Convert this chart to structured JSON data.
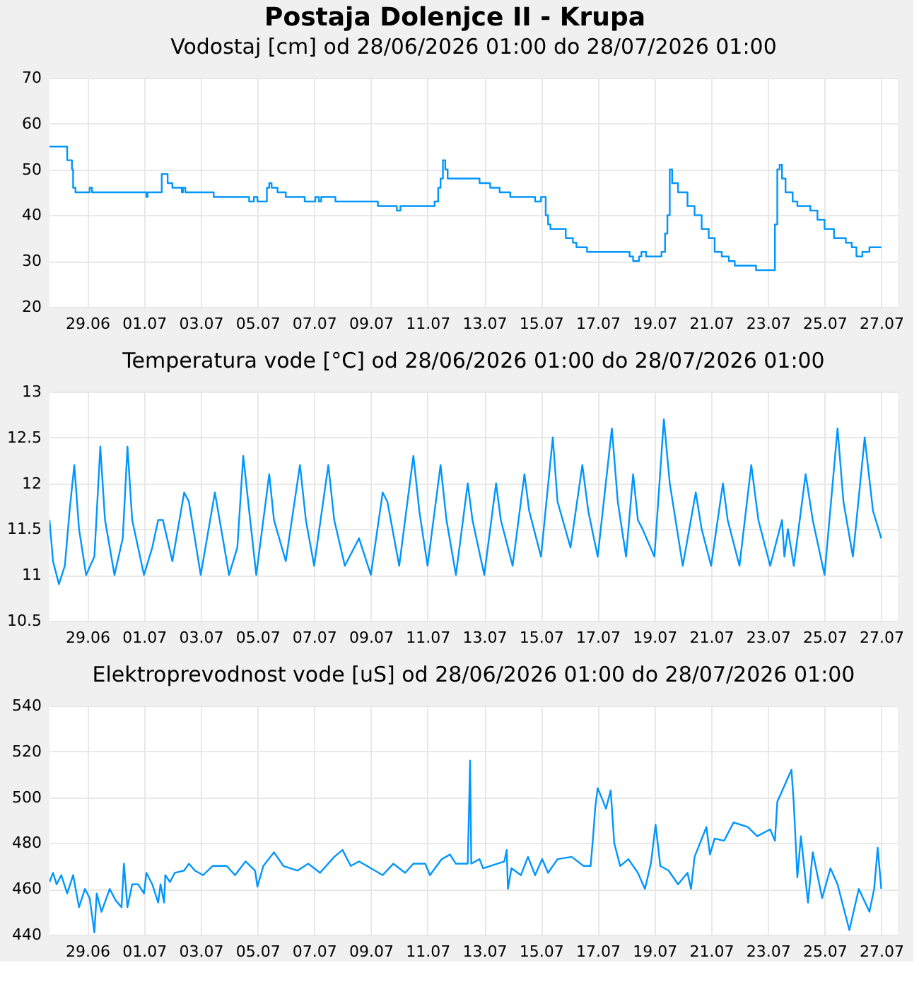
{
  "chart_data": [
    {
      "type": "step",
      "title": "Postaja Dolenjce II - Krupa",
      "subtitle": "Vodostaj [cm] od 28/06/2026 01:00 do 28/07/2026 01:00",
      "x": [
        "2026-06-27T16:00",
        "2026-06-28T07:00",
        "2026-06-28T11:00",
        "2026-06-28T12:00",
        "2026-06-28T14:00",
        "2026-06-29T02:00",
        "2026-06-29T04:00",
        "2026-07-01T02:00",
        "2026-07-01T03:00",
        "2026-07-01T15:00",
        "2026-07-01T20:00",
        "2026-07-02T00:00",
        "2026-07-02T08:00",
        "2026-07-02T09:00",
        "2026-07-02T11:00",
        "2026-07-03T11:00",
        "2026-07-04T17:00",
        "2026-07-04T21:00",
        "2026-07-05T00:00",
        "2026-07-05T08:00",
        "2026-07-05T10:00",
        "2026-07-05T12:00",
        "2026-07-05T17:00",
        "2026-07-06T00:00",
        "2026-07-06T16:00",
        "2026-07-07T01:00",
        "2026-07-07T04:00",
        "2026-07-07T06:00",
        "2026-07-07T18:00",
        "2026-07-09T06:00",
        "2026-07-09T22:00",
        "2026-07-10T01:00",
        "2026-07-11T06:00",
        "2026-07-11T09:00",
        "2026-07-11T11:00",
        "2026-07-11T13:00",
        "2026-07-11T15:00",
        "2026-07-11T17:00",
        "2026-07-12T20:00",
        "2026-07-13T05:00",
        "2026-07-13T13:00",
        "2026-07-13T22:00",
        "2026-07-14T19:00",
        "2026-07-15T00:00",
        "2026-07-15T04:00",
        "2026-07-15T06:00",
        "2026-07-15T08:00",
        "2026-07-15T21:00",
        "2026-07-16T03:00",
        "2026-07-16T06:00",
        "2026-07-16T15:00",
        "2026-07-18T03:00",
        "2026-07-18T06:00",
        "2026-07-18T11:00",
        "2026-07-18T13:00",
        "2026-07-18T17:00",
        "2026-07-19T06:00",
        "2026-07-19T09:00",
        "2026-07-19T11:00",
        "2026-07-19T13:00",
        "2026-07-19T15:00",
        "2026-07-19T20:00",
        "2026-07-20T04:00",
        "2026-07-20T10:00",
        "2026-07-20T16:00",
        "2026-07-20T22:00",
        "2026-07-21T03:00",
        "2026-07-21T09:00",
        "2026-07-21T15:00",
        "2026-07-21T20:00",
        "2026-07-22T14:00",
        "2026-07-23T06:00",
        "2026-07-23T08:00",
        "2026-07-23T10:00",
        "2026-07-23T12:00",
        "2026-07-23T15:00",
        "2026-07-23T21:00",
        "2026-07-24T01:00",
        "2026-07-24T12:00",
        "2026-07-24T18:00",
        "2026-07-25T00:00",
        "2026-07-25T08:00",
        "2026-07-25T18:00",
        "2026-07-25T23:00",
        "2026-07-26T03:00",
        "2026-07-26T08:00",
        "2026-07-26T14:00",
        "2026-07-27T00:00"
      ],
      "series": [
        {
          "color": "#0096ff",
          "values": [
            55,
            52,
            50,
            46,
            45,
            46,
            45,
            44,
            45,
            49,
            47,
            46,
            45,
            46,
            45,
            44,
            43,
            44,
            43,
            46,
            47,
            46,
            45,
            44,
            43,
            44,
            43,
            44,
            43,
            42,
            41,
            42,
            43,
            46,
            48,
            52,
            50,
            48,
            47,
            46,
            45,
            44,
            43,
            44,
            40,
            38,
            37,
            35,
            34,
            33,
            32,
            31,
            30,
            31,
            32,
            31,
            32,
            36,
            40,
            50,
            47,
            45,
            42,
            40,
            37,
            35,
            32,
            31,
            30,
            29,
            28,
            38,
            50,
            51,
            48,
            45,
            43,
            42,
            41,
            39,
            37,
            35,
            34,
            33,
            31,
            32,
            33,
            33
          ]
        }
      ],
      "xlim": [
        "2026-06-27T16:00",
        "2026-07-27T14:00"
      ],
      "ylim": [
        20,
        70
      ],
      "yticks": [
        20,
        30,
        40,
        50,
        60,
        70
      ],
      "xticks": [
        {
          "value": "2026-06-29",
          "label": "29.06"
        },
        {
          "value": "2026-07-01",
          "label": "01.07"
        },
        {
          "value": "2026-07-03",
          "label": "03.07"
        },
        {
          "value": "2026-07-05",
          "label": "05.07"
        },
        {
          "value": "2026-07-07",
          "label": "07.07"
        },
        {
          "value": "2026-07-09",
          "label": "09.07"
        },
        {
          "value": "2026-07-11",
          "label": "11.07"
        },
        {
          "value": "2026-07-13",
          "label": "13.07"
        },
        {
          "value": "2026-07-15",
          "label": "15.07"
        },
        {
          "value": "2026-07-17",
          "label": "17.07"
        },
        {
          "value": "2026-07-19",
          "label": "19.07"
        },
        {
          "value": "2026-07-21",
          "label": "21.07"
        },
        {
          "value": "2026-07-23",
          "label": "23.07"
        },
        {
          "value": "2026-07-25",
          "label": "25.07"
        },
        {
          "value": "2026-07-27",
          "label": "27.07"
        }
      ],
      "grid": true,
      "line_style": "solid"
    },
    {
      "type": "line",
      "title": "Temperatura vode [°C] od 28/06/2026 01:00 do 28/07/2026 01:00",
      "x": [
        "2026-06-27T16:00",
        "2026-06-27T19:00",
        "2026-06-28T00:00",
        "2026-06-28T05:00",
        "2026-06-28T09:00",
        "2026-06-28T13:00",
        "2026-06-28T17:00",
        "2026-06-28T23:00",
        "2026-06-29T06:00",
        "2026-06-29T11:00",
        "2026-06-29T15:00",
        "2026-06-29T23:00",
        "2026-06-30T06:00",
        "2026-06-30T10:00",
        "2026-06-30T14:00",
        "2026-07-01T00:00",
        "2026-07-01T07:00",
        "2026-07-01T12:00",
        "2026-07-01T16:00",
        "2026-07-02T00:00",
        "2026-07-02T10:00",
        "2026-07-02T14:00",
        "2026-07-03T00:00",
        "2026-07-03T12:00",
        "2026-07-04T00:00",
        "2026-07-04T07:00",
        "2026-07-04T12:00",
        "2026-07-04T17:00",
        "2026-07-04T23:00",
        "2026-07-05T10:00",
        "2026-07-05T14:00",
        "2026-07-06T00:00",
        "2026-07-06T12:00",
        "2026-07-06T17:00",
        "2026-07-07T00:00",
        "2026-07-07T12:00",
        "2026-07-07T17:00",
        "2026-07-08T02:00",
        "2026-07-08T14:00",
        "2026-07-09T00:00",
        "2026-07-09T10:00",
        "2026-07-09T14:00",
        "2026-07-10T00:00",
        "2026-07-10T12:00",
        "2026-07-10T17:00",
        "2026-07-11T00:00",
        "2026-07-11T11:00",
        "2026-07-11T16:00",
        "2026-07-12T00:00",
        "2026-07-12T10:00",
        "2026-07-12T14:00",
        "2026-07-13T00:00",
        "2026-07-13T10:00",
        "2026-07-13T14:00",
        "2026-07-14T00:00",
        "2026-07-14T10:00",
        "2026-07-14T14:00",
        "2026-07-15T00:00",
        "2026-07-15T10:00",
        "2026-07-15T14:00",
        "2026-07-16T01:00",
        "2026-07-16T11:00",
        "2026-07-16T16:00",
        "2026-07-17T00:00",
        "2026-07-17T12:00",
        "2026-07-17T17:00",
        "2026-07-18T00:00",
        "2026-07-18T06:00",
        "2026-07-18T10:00",
        "2026-07-18T14:00",
        "2026-07-19T00:00",
        "2026-07-19T08:00",
        "2026-07-19T13:00",
        "2026-07-20T00:00",
        "2026-07-20T11:00",
        "2026-07-20T16:00",
        "2026-07-21T00:00",
        "2026-07-21T10:00",
        "2026-07-21T14:00",
        "2026-07-22T00:00",
        "2026-07-22T10:00",
        "2026-07-22T16:00",
        "2026-07-23T02:00",
        "2026-07-23T12:00",
        "2026-07-23T14:00",
        "2026-07-23T17:00",
        "2026-07-23T22:00",
        "2026-07-24T08:00",
        "2026-07-24T14:00",
        "2026-07-25T00:00",
        "2026-07-25T11:00",
        "2026-07-25T16:00",
        "2026-07-26T00:00",
        "2026-07-26T10:00",
        "2026-07-26T17:00",
        "2026-07-27T00:00"
      ],
      "series": [
        {
          "color": "#0096ff",
          "values": [
            11.6,
            11.15,
            10.9,
            11.1,
            11.7,
            12.2,
            11.5,
            11.0,
            11.2,
            12.4,
            11.6,
            11.0,
            11.4,
            12.4,
            11.6,
            11.0,
            11.3,
            11.6,
            11.6,
            11.15,
            11.9,
            11.8,
            11.0,
            11.9,
            11.0,
            11.3,
            12.3,
            11.7,
            11.0,
            12.1,
            11.6,
            11.15,
            12.2,
            11.6,
            11.1,
            12.2,
            11.6,
            11.1,
            11.4,
            11.0,
            11.9,
            11.8,
            11.1,
            12.3,
            11.7,
            11.1,
            12.2,
            11.6,
            11.0,
            12.0,
            11.6,
            11.0,
            12.0,
            11.6,
            11.1,
            12.1,
            11.7,
            11.2,
            12.5,
            11.8,
            11.3,
            12.2,
            11.7,
            11.2,
            12.6,
            11.8,
            11.2,
            12.1,
            11.6,
            11.5,
            11.2,
            12.7,
            12.0,
            11.1,
            11.9,
            11.5,
            11.1,
            12.0,
            11.6,
            11.1,
            12.2,
            11.6,
            11.1,
            11.6,
            11.2,
            11.5,
            11.1,
            12.1,
            11.6,
            11.0,
            12.6,
            11.8,
            11.2,
            12.5,
            11.7,
            11.4
          ]
        }
      ],
      "xlim": [
        "2026-06-27T16:00",
        "2026-07-27T14:00"
      ],
      "ylim": [
        10.5,
        13
      ],
      "yticks": [
        10.5,
        11,
        11.5,
        12,
        12.5,
        13
      ],
      "xticks": [
        {
          "value": "2026-06-29",
          "label": "29.06"
        },
        {
          "value": "2026-07-01",
          "label": "01.07"
        },
        {
          "value": "2026-07-03",
          "label": "03.07"
        },
        {
          "value": "2026-07-05",
          "label": "05.07"
        },
        {
          "value": "2026-07-07",
          "label": "07.07"
        },
        {
          "value": "2026-07-09",
          "label": "09.07"
        },
        {
          "value": "2026-07-11",
          "label": "11.07"
        },
        {
          "value": "2026-07-13",
          "label": "13.07"
        },
        {
          "value": "2026-07-15",
          "label": "15.07"
        },
        {
          "value": "2026-07-17",
          "label": "17.07"
        },
        {
          "value": "2026-07-19",
          "label": "19.07"
        },
        {
          "value": "2026-07-21",
          "label": "21.07"
        },
        {
          "value": "2026-07-23",
          "label": "23.07"
        },
        {
          "value": "2026-07-25",
          "label": "25.07"
        },
        {
          "value": "2026-07-27",
          "label": "27.07"
        }
      ],
      "grid": true,
      "line_style": "solid"
    },
    {
      "type": "line",
      "title": "Elektroprevodnost vode [uS] od 28/06/2026 01:00 do 28/07/2026 01:00",
      "x": [
        "2026-06-27T16:00",
        "2026-06-27T19:00",
        "2026-06-27T22:00",
        "2026-06-28T02:00",
        "2026-06-28T07:00",
        "2026-06-28T12:00",
        "2026-06-28T17:00",
        "2026-06-28T22:00",
        "2026-06-29T02:00",
        "2026-06-29T06:00",
        "2026-06-29T08:00",
        "2026-06-29T12:00",
        "2026-06-29T19:00",
        "2026-06-30T00:00",
        "2026-06-30T05:00",
        "2026-06-30T07:00",
        "2026-06-30T10:00",
        "2026-06-30T14:00",
        "2026-06-30T19:00",
        "2026-07-01T00:00",
        "2026-07-01T02:00",
        "2026-07-01T07:00",
        "2026-07-01T12:00",
        "2026-07-01T14:00",
        "2026-07-01T17:00",
        "2026-07-01T18:00",
        "2026-07-01T22:00",
        "2026-07-02T02:00",
        "2026-07-02T10:00",
        "2026-07-02T14:00",
        "2026-07-02T19:00",
        "2026-07-03T02:00",
        "2026-07-03T10:00",
        "2026-07-03T22:00",
        "2026-07-04T05:00",
        "2026-07-04T14:00",
        "2026-07-04T22:00",
        "2026-07-05T00:00",
        "2026-07-05T05:00",
        "2026-07-05T14:00",
        "2026-07-05T22:00",
        "2026-07-06T10:00",
        "2026-07-06T19:00",
        "2026-07-07T05:00",
        "2026-07-07T17:00",
        "2026-07-08T00:00",
        "2026-07-08T07:00",
        "2026-07-08T14:00",
        "2026-07-09T00:00",
        "2026-07-09T10:00",
        "2026-07-09T19:00",
        "2026-07-10T05:00",
        "2026-07-10T12:00",
        "2026-07-10T22:00",
        "2026-07-11T02:00",
        "2026-07-11T12:00",
        "2026-07-11T19:00",
        "2026-07-12T00:00",
        "2026-07-12T10:00",
        "2026-07-12T11:00",
        "2026-07-12T12:00",
        "2026-07-12T13:00",
        "2026-07-12T20:00",
        "2026-07-12T23:00",
        "2026-07-13T17:00",
        "2026-07-13T19:00",
        "2026-07-13T20:00",
        "2026-07-13T23:00",
        "2026-07-14T07:00",
        "2026-07-14T13:00",
        "2026-07-14T19:00",
        "2026-07-15T01:00",
        "2026-07-15T06:00",
        "2026-07-15T14:00",
        "2026-07-16T02:00",
        "2026-07-16T12:00",
        "2026-07-16T18:00",
        "2026-07-16T20:00",
        "2026-07-16T22:00",
        "2026-07-17T00:00",
        "2026-07-17T04:00",
        "2026-07-17T07:00",
        "2026-07-17T11:00",
        "2026-07-17T14:00",
        "2026-07-17T19:00",
        "2026-07-18T02:00",
        "2026-07-18T10:00",
        "2026-07-18T16:00",
        "2026-07-18T21:00",
        "2026-07-19T01:00",
        "2026-07-19T05:00",
        "2026-07-19T12:00",
        "2026-07-19T20:00",
        "2026-07-20T04:00",
        "2026-07-20T07:00",
        "2026-07-20T10:00",
        "2026-07-20T20:00",
        "2026-07-20T23:00",
        "2026-07-21T03:00",
        "2026-07-21T11:00",
        "2026-07-21T19:00",
        "2026-07-22T07:00",
        "2026-07-22T15:00",
        "2026-07-23T02:00",
        "2026-07-23T06:00",
        "2026-07-23T08:00",
        "2026-07-23T14:00",
        "2026-07-23T20:00",
        "2026-07-23T22:00",
        "2026-07-24T01:00",
        "2026-07-24T04:00",
        "2026-07-24T10:00",
        "2026-07-24T14:00",
        "2026-07-24T22:00",
        "2026-07-25T05:00",
        "2026-07-25T11:00",
        "2026-07-25T21:00",
        "2026-07-26T05:00",
        "2026-07-26T14:00",
        "2026-07-26T18:00",
        "2026-07-26T21:00",
        "2026-07-27T00:00"
      ],
      "series": [
        {
          "color": "#0096ff",
          "values": [
            463,
            467,
            462,
            466,
            458,
            466,
            452,
            460,
            456,
            441,
            458,
            450,
            460,
            455,
            452,
            471,
            452,
            462,
            462,
            458,
            467,
            462,
            454,
            462,
            454,
            466,
            463,
            467,
            468,
            471,
            468,
            466,
            470,
            470,
            466,
            472,
            468,
            461,
            470,
            476,
            470,
            468,
            471,
            467,
            474,
            477,
            470,
            472,
            469,
            466,
            471,
            467,
            471,
            471,
            466,
            473,
            475,
            471,
            471,
            493,
            516,
            471,
            473,
            469,
            472,
            477,
            460,
            469,
            466,
            474,
            466,
            473,
            467,
            473,
            474,
            470,
            470,
            482,
            496,
            504,
            499,
            495,
            503,
            480,
            470,
            473,
            467,
            460,
            471,
            488,
            470,
            468,
            462,
            467,
            460,
            474,
            487,
            475,
            482,
            481,
            489,
            487,
            483,
            486,
            481,
            498,
            505,
            512,
            497,
            465,
            483,
            454,
            476,
            456,
            469,
            462,
            442,
            460,
            450,
            460,
            478,
            460
          ]
        }
      ],
      "xlim": [
        "2026-06-27T16:00",
        "2026-07-27T14:00"
      ],
      "ylim": [
        440,
        540
      ],
      "yticks": [
        440,
        460,
        480,
        500,
        520,
        540
      ],
      "xticks": [
        {
          "value": "2026-06-29",
          "label": "29.06"
        },
        {
          "value": "2026-07-01",
          "label": "01.07"
        },
        {
          "value": "2026-07-03",
          "label": "03.07"
        },
        {
          "value": "2026-07-05",
          "label": "05.07"
        },
        {
          "value": "2026-07-07",
          "label": "07.07"
        },
        {
          "value": "2026-07-09",
          "label": "09.07"
        },
        {
          "value": "2026-07-11",
          "label": "11.07"
        },
        {
          "value": "2026-07-13",
          "label": "13.07"
        },
        {
          "value": "2026-07-15",
          "label": "15.07"
        },
        {
          "value": "2026-07-17",
          "label": "17.07"
        },
        {
          "value": "2026-07-19",
          "label": "19.07"
        },
        {
          "value": "2026-07-21",
          "label": "21.07"
        },
        {
          "value": "2026-07-23",
          "label": "23.07"
        },
        {
          "value": "2026-07-25",
          "label": "25.07"
        },
        {
          "value": "2026-07-27",
          "label": "27.07"
        }
      ],
      "grid": true,
      "line_style": "solid"
    }
  ]
}
